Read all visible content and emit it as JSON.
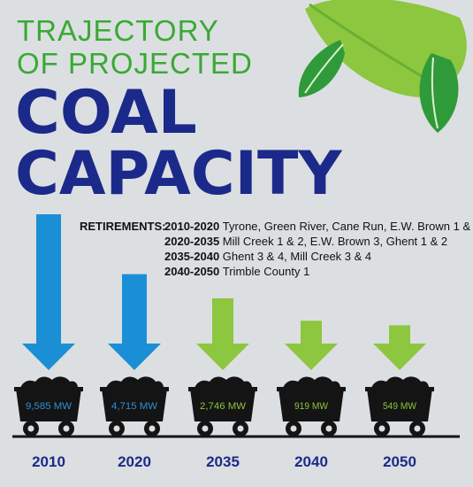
{
  "header": {
    "title_line1": "TRAJECTORY",
    "title_line2": "OF PROJECTED",
    "title_line3": "COAL",
    "title_line4": "CAPACITY"
  },
  "retirements": {
    "label": "RETIREMENTS:",
    "items": [
      {
        "period": "2010-2020",
        "plants": "Tyrone, Green River, Cane Run, E.W. Brown 1 & 2"
      },
      {
        "period": "2020-2035",
        "plants": "Mill Creek 1 & 2, E.W. Brown 3, Ghent 1 & 2"
      },
      {
        "period": "2035-2040",
        "plants": "Ghent 3 & 4, Mill Creek 3 & 4"
      },
      {
        "period": "2040-2050",
        "plants": "Trimble County 1"
      }
    ]
  },
  "colors": {
    "blue_arrow": "#1b8fd6",
    "green_arrow": "#8dc63f",
    "title_green": "#3aa935",
    "title_navy": "#1b2a8a",
    "cart_black": "#141414",
    "label_blue": "#2f8fd8",
    "label_green": "#8dc63f",
    "year_navy": "#1b2a8a",
    "leaf_green_dark": "#2f9a3a",
    "leaf_green_light": "#8dc63f"
  },
  "decor": {
    "icons": [
      "leaf-icon",
      "coal-cart-icon",
      "down-arrow-icon"
    ]
  },
  "chart_data": {
    "type": "bar",
    "categories": [
      "2010",
      "2020",
      "2035",
      "2040",
      "2050"
    ],
    "series": [
      {
        "values": [
          9585,
          4715,
          2746,
          919,
          549
        ],
        "labels": [
          "9,585 MW",
          "4,715 MW",
          "2,746 MW",
          "919 MW",
          "549 MW"
        ],
        "colors": [
          "blue",
          "blue",
          "green",
          "green",
          "green"
        ]
      }
    ]
  }
}
